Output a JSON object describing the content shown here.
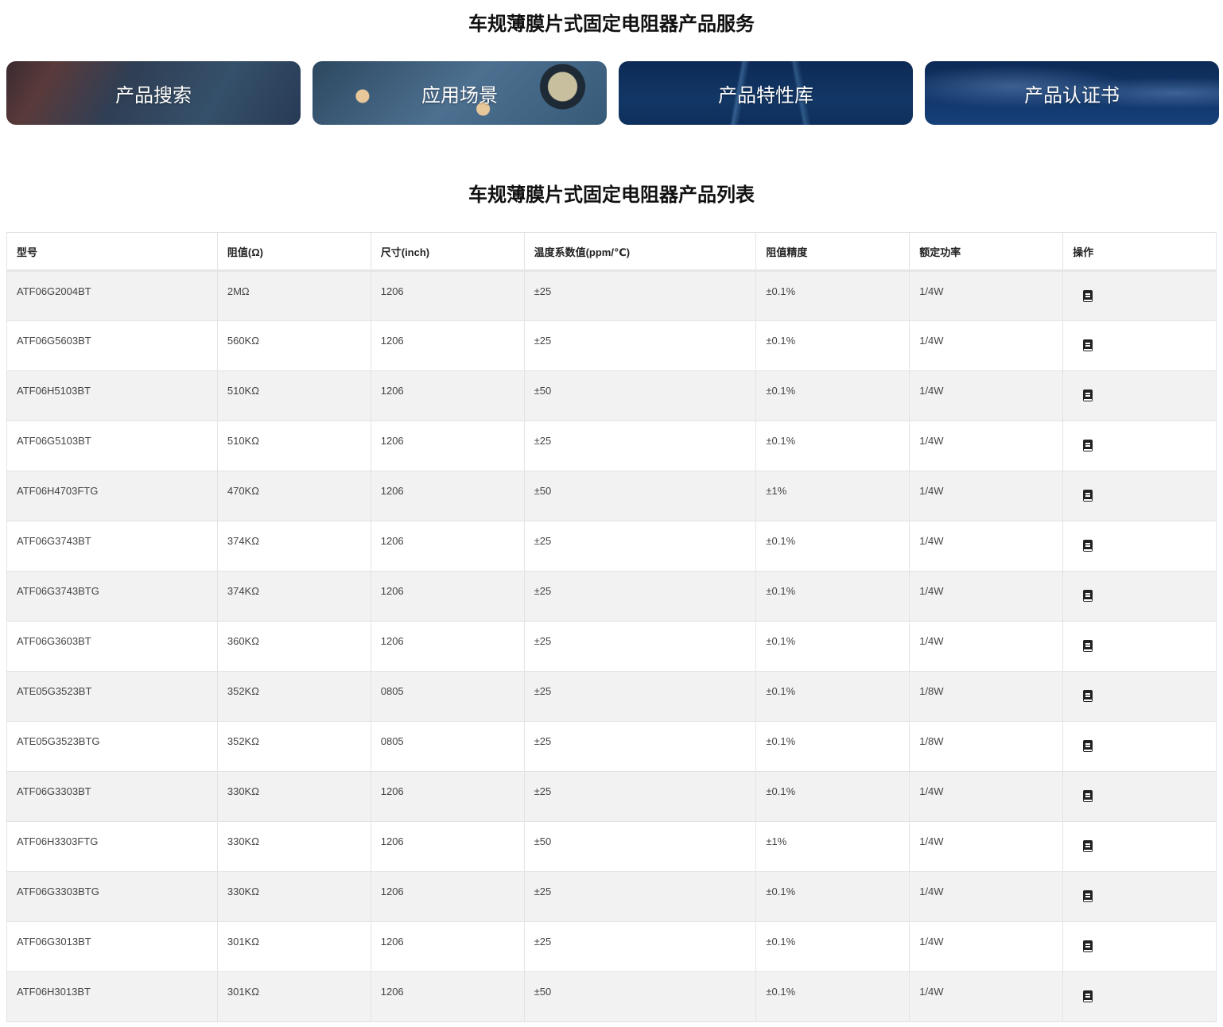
{
  "services_title": "车规薄膜片式固定电阻器产品服务",
  "cards": [
    {
      "label": "产品搜索"
    },
    {
      "label": "应用场景"
    },
    {
      "label": "产品特性库"
    },
    {
      "label": "产品认证书"
    }
  ],
  "list_title": "车规薄膜片式固定电阻器产品列表",
  "table": {
    "headers": [
      "型号",
      "阻值(Ω)",
      "尺寸(inch)",
      "温度系数值(ppm/℃)",
      "阻值精度",
      "额定功率",
      "操作"
    ],
    "action_icon": "book-icon",
    "rows": [
      [
        "ATF06G2004BT",
        "2MΩ",
        "1206",
        "±25",
        "±0.1%",
        "1/4W"
      ],
      [
        "ATF06G5603BT",
        "560KΩ",
        "1206",
        "±25",
        "±0.1%",
        "1/4W"
      ],
      [
        "ATF06H5103BT",
        "510KΩ",
        "1206",
        "±50",
        "±0.1%",
        "1/4W"
      ],
      [
        "ATF06G5103BT",
        "510KΩ",
        "1206",
        "±25",
        "±0.1%",
        "1/4W"
      ],
      [
        "ATF06H4703FTG",
        "470KΩ",
        "1206",
        "±50",
        "±1%",
        "1/4W"
      ],
      [
        "ATF06G3743BT",
        "374KΩ",
        "1206",
        "±25",
        "±0.1%",
        "1/4W"
      ],
      [
        "ATF06G3743BTG",
        "374KΩ",
        "1206",
        "±25",
        "±0.1%",
        "1/4W"
      ],
      [
        "ATF06G3603BT",
        "360KΩ",
        "1206",
        "±25",
        "±0.1%",
        "1/4W"
      ],
      [
        "ATE05G3523BT",
        "352KΩ",
        "0805",
        "±25",
        "±0.1%",
        "1/8W"
      ],
      [
        "ATE05G3523BTG",
        "352KΩ",
        "0805",
        "±25",
        "±0.1%",
        "1/8W"
      ],
      [
        "ATF06G3303BT",
        "330KΩ",
        "1206",
        "±25",
        "±0.1%",
        "1/4W"
      ],
      [
        "ATF06H3303FTG",
        "330KΩ",
        "1206",
        "±50",
        "±1%",
        "1/4W"
      ],
      [
        "ATF06G3303BTG",
        "330KΩ",
        "1206",
        "±25",
        "±0.1%",
        "1/4W"
      ],
      [
        "ATF06G3013BT",
        "301KΩ",
        "1206",
        "±25",
        "±0.1%",
        "1/4W"
      ],
      [
        "ATF06H3013BT",
        "301KΩ",
        "1206",
        "±50",
        "±0.1%",
        "1/4W"
      ]
    ]
  }
}
